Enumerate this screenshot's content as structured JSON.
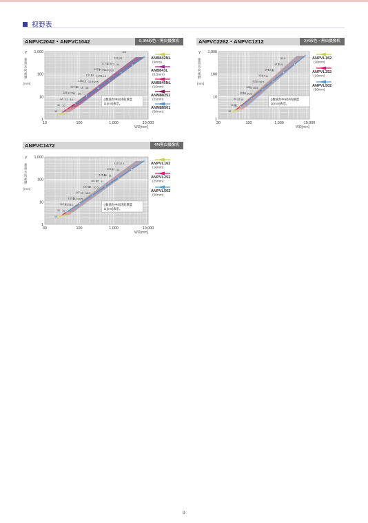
{
  "section_title": "视野表",
  "page_number": "9",
  "common": {
    "y_axis_label": "Y(垂直方向视野)",
    "unit": "[mm]",
    "x_axis_label": "WD[mm]",
    "note": "()数值为中间环的厚度以[mm]表示。",
    "x_ticks": [
      "10",
      "100",
      "1,000",
      "10,000"
    ],
    "y_ticks": [
      "1,000",
      "100",
      "10",
      "1"
    ]
  },
  "charts": [
    {
      "title": "ANPVC2042・ANPVC1042",
      "tag": "0.3M彩色・黑白摄像机",
      "x_ticks": [
        "10",
        "100",
        "1,000",
        "10,000"
      ],
      "legend": [
        {
          "name": "ANB842NL",
          "spec": "(6mm)",
          "color": "#c8d443"
        },
        {
          "name": "ANB843L",
          "spec": "(8.5mm)",
          "color": "#9c2a8a"
        },
        {
          "name": "ANB845NL",
          "spec": "(16mm)",
          "color": "#d81b6a"
        },
        {
          "name": "ANM88251",
          "spec": "(25mm)",
          "color": "#8a1b4e"
        },
        {
          "name": "ANM88501",
          "spec": "(50mm)",
          "color": "#4a9cd6"
        }
      ],
      "series_labels": [
        "10",
        "10",
        "10",
        "10",
        "10",
        "10.5",
        "10.5",
        "10.5",
        "11",
        "11",
        "11",
        "11",
        "11",
        "11.5",
        "11.5",
        "11.5",
        "12",
        "12",
        "12",
        "12.5",
        "15",
        "15",
        "17",
        "17.5",
        "17.5",
        "110",
        "115",
        "125",
        "127.5",
        "135",
        "137.5",
        "147.5",
        "177.5"
      ]
    },
    {
      "title": "ANPVC2262・ANPVC1212",
      "tag": "2M彩色・黑白摄像机",
      "x_ticks": [
        "30",
        "100",
        "1,000",
        "10,000"
      ],
      "legend": [
        {
          "name": "ANPVL162",
          "spec": "(16mm)",
          "color": "#c8d443"
        },
        {
          "name": "ANPVL252",
          "spec": "(25mm)",
          "color": "#d81b6a"
        },
        {
          "name": "ANPVL502",
          "spec": "(50mm)",
          "color": "#4a9cd6"
        }
      ],
      "series_labels": [
        "10",
        "10",
        "10",
        "10.5",
        "10.5",
        "10.5",
        "11",
        "11",
        "11.5",
        "11.5",
        "12",
        "12",
        "12",
        "15",
        "17",
        "17.5",
        "17.5",
        "52.5",
        "95",
        "101",
        "105",
        "112",
        "132",
        "164"
      ]
    },
    {
      "title": "ANPVC1472",
      "tag": "4M黑白摄像机",
      "x_ticks": [
        "30",
        "100",
        "1,000",
        "10,000"
      ],
      "legend": [
        {
          "name": "ANPVL162",
          "spec": "(16mm)",
          "color": "#c8d443"
        },
        {
          "name": "ANPVL252",
          "spec": "(25mm)",
          "color": "#d81b6a"
        },
        {
          "name": "ANPVL502",
          "spec": "(50mm)",
          "color": "#4a9cd6"
        }
      ],
      "series_labels": [
        "10",
        "10",
        "10",
        "10.5",
        "10.5",
        "10.5",
        "11",
        "11",
        "11",
        "11",
        "11.5",
        "11.5",
        "12",
        "12",
        "12",
        "16",
        "17",
        "17.5",
        "117.5",
        "135.5",
        "147",
        "157.5",
        "167.5",
        "176.5",
        "178.5",
        "110"
      ]
    }
  ]
}
